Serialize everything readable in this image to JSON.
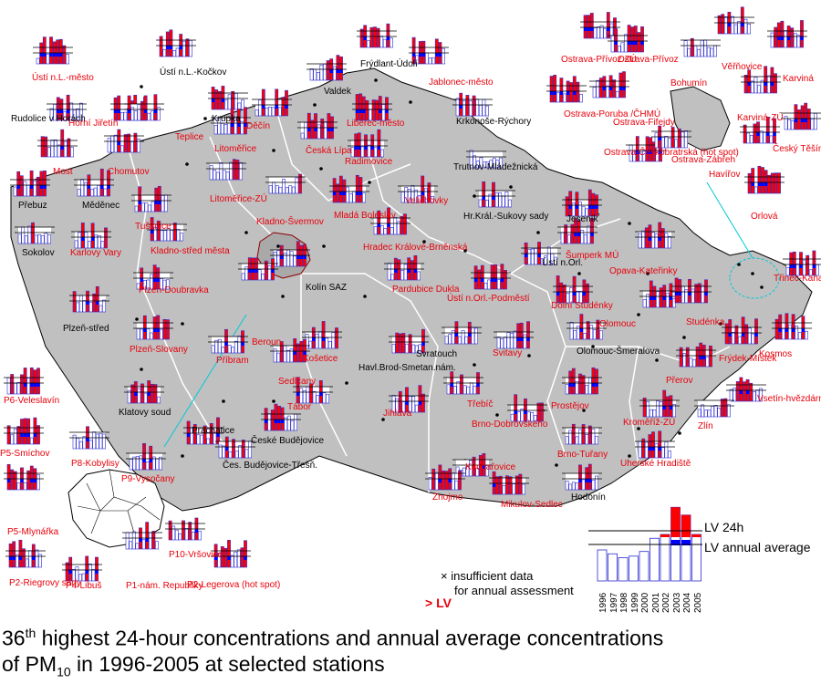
{
  "legend": {
    "lv24": "LV 24h",
    "lvannual": "LV annual average",
    "insufficient_line1": "insufficient data",
    "insufficient_line2": "for annual assessment",
    "exceed": "> LV",
    "years": [
      "1996",
      "1997",
      "1998",
      "1999",
      "2000",
      "2001",
      "2002",
      "2003",
      "2004",
      "2005"
    ]
  },
  "caption": {
    "part1": "36",
    "sup": "th",
    "part2": " highest 24-hour concentrations and annual average concentrations",
    "part3": "of PM",
    "sub": "10",
    "part4": "  in 1996-2005 at selected stations"
  },
  "stations": [
    {
      "name": "Ústí n.L.-město",
      "color": "red"
    },
    {
      "name": "Ústí n.L.-Kočkov",
      "color": "black"
    },
    {
      "name": "Frýdlant-Údolí",
      "color": "black"
    },
    {
      "name": "Jablonec-město",
      "color": "red"
    },
    {
      "name": "Valdek",
      "color": "black"
    },
    {
      "name": "Rudolice v Horách",
      "color": "black"
    },
    {
      "name": "Horní Jiřetín",
      "color": "red"
    },
    {
      "name": "Teplice",
      "color": "red"
    },
    {
      "name": "Krupka",
      "color": "black"
    },
    {
      "name": "Děčín",
      "color": "red"
    },
    {
      "name": "Liberec-město",
      "color": "red"
    },
    {
      "name": "Krkonoše-Rýchory",
      "color": "black"
    },
    {
      "name": "Litoměřice",
      "color": "red"
    },
    {
      "name": "Česká Lípa",
      "color": "red"
    },
    {
      "name": "Radimovice",
      "color": "red"
    },
    {
      "name": "Trutnov-Mládežnická",
      "color": "black"
    },
    {
      "name": "Most",
      "color": "red"
    },
    {
      "name": "Chomutov",
      "color": "red"
    },
    {
      "name": "Přebuz",
      "color": "black"
    },
    {
      "name": "Měděnec",
      "color": "black"
    },
    {
      "name": "Litoměřice-ZÚ",
      "color": "red"
    },
    {
      "name": "Tušimice",
      "color": "red"
    },
    {
      "name": "Mladá Boleslav",
      "color": "red"
    },
    {
      "name": "Velichovky",
      "color": "red"
    },
    {
      "name": "Hr.Král.-Sukovy sady",
      "color": "black"
    },
    {
      "name": "Jeseník",
      "color": "black"
    },
    {
      "name": "Kladno-Švermov",
      "color": "red"
    },
    {
      "name": "Sokolov",
      "color": "black"
    },
    {
      "name": "Karlovy Vary",
      "color": "red"
    },
    {
      "name": "Kladno-střed města",
      "color": "red"
    },
    {
      "name": "Hradec Králové-Brněnská",
      "color": "red"
    },
    {
      "name": "Ústí n.Orl.",
      "color": "black"
    },
    {
      "name": "Šumperk MÚ",
      "color": "red"
    },
    {
      "name": "Opava-Kateřinky",
      "color": "red"
    },
    {
      "name": "Plzeň-Doubravka",
      "color": "red"
    },
    {
      "name": "Kolín SAZ",
      "color": "black"
    },
    {
      "name": "Pardubice Dukla",
      "color": "red"
    },
    {
      "name": "Ústí n.Orl.-Podměstí",
      "color": "red"
    },
    {
      "name": "Dolní Studénky",
      "color": "red"
    },
    {
      "name": "Plzeň-střed",
      "color": "black"
    },
    {
      "name": "Beroun",
      "color": "red"
    },
    {
      "name": "Košetice",
      "color": "red"
    },
    {
      "name": "Svratouch",
      "color": "black"
    },
    {
      "name": "Olomouc",
      "color": "red"
    },
    {
      "name": "Studénka",
      "color": "red"
    },
    {
      "name": "Plzeň-Slovany",
      "color": "red"
    },
    {
      "name": "Příbram",
      "color": "red"
    },
    {
      "name": "Sedlčany",
      "color": "red"
    },
    {
      "name": "Havl.Brod-Smetan.nám.",
      "color": "black"
    },
    {
      "name": "Svitavy",
      "color": "red"
    },
    {
      "name": "Olomouc-Šmeralova",
      "color": "black"
    },
    {
      "name": "Frýdek-Místek",
      "color": "red"
    },
    {
      "name": "Kosmos",
      "color": "red"
    },
    {
      "name": "Třinec-Kanada",
      "color": "red"
    },
    {
      "name": "Klatovy soud",
      "color": "black"
    },
    {
      "name": "Tábor",
      "color": "red"
    },
    {
      "name": "Jihlava",
      "color": "red"
    },
    {
      "name": "Třebíč",
      "color": "red"
    },
    {
      "name": "Přerov",
      "color": "red"
    },
    {
      "name": "Prostějov",
      "color": "red"
    },
    {
      "name": "Vsetín-hvězdárna",
      "color": "red"
    },
    {
      "name": "Prachatice",
      "color": "black"
    },
    {
      "name": "České Budějovice",
      "color": "black"
    },
    {
      "name": "Brno-Dobrovského",
      "color": "red"
    },
    {
      "name": "Kroměříž-ZÚ",
      "color": "red"
    },
    {
      "name": "Zlín",
      "color": "red"
    },
    {
      "name": "Brno-Tuřany",
      "color": "red"
    },
    {
      "name": "Uherské Hradiště",
      "color": "red"
    },
    {
      "name": "Kuchařovice",
      "color": "red"
    },
    {
      "name": "Čes. Budějovice-Třešň.",
      "color": "black"
    },
    {
      "name": "Znojmo",
      "color": "red"
    },
    {
      "name": "Mikulov-Sedlec",
      "color": "red"
    },
    {
      "name": "Hodonín",
      "color": "black"
    },
    {
      "name": "P6-Veleslavín",
      "color": "red"
    },
    {
      "name": "P5-Smíchov",
      "color": "red"
    },
    {
      "name": "P8-Kobylisy",
      "color": "red"
    },
    {
      "name": "P9-Vysočany",
      "color": "red"
    },
    {
      "name": "P5-Mlynářka",
      "color": "red"
    },
    {
      "name": "P10-Vršovice",
      "color": "red"
    },
    {
      "name": "P2-Riegrovy sady",
      "color": "red"
    },
    {
      "name": "P4-Libuš",
      "color": "red"
    },
    {
      "name": "P1-nám. Republiky",
      "color": "red"
    },
    {
      "name": "P2-Legerova (hot spot)",
      "color": "red"
    },
    {
      "name": "Ostrava-Přívoz ZÚ",
      "color": "red"
    },
    {
      "name": "Ostrava-Přívoz",
      "color": "red"
    },
    {
      "name": "Bohumín",
      "color": "red"
    },
    {
      "name": "Věřňovice",
      "color": "red"
    },
    {
      "name": "Karviná",
      "color": "red"
    },
    {
      "name": "Ostrava-Poruba /ČHMÚ",
      "color": "red"
    },
    {
      "name": "Ostrava-Fifejdy",
      "color": "red"
    },
    {
      "name": "Karviná-ZÚ",
      "color": "red"
    },
    {
      "name": "Český Těšín",
      "color": "red"
    },
    {
      "name": "Ostrava-Českobratrská (hot spot)",
      "color": "red"
    },
    {
      "name": "Ostrava-Zábřeh",
      "color": "red"
    },
    {
      "name": "Havířov",
      "color": "red"
    },
    {
      "name": "Orlová",
      "color": "red"
    }
  ]
}
